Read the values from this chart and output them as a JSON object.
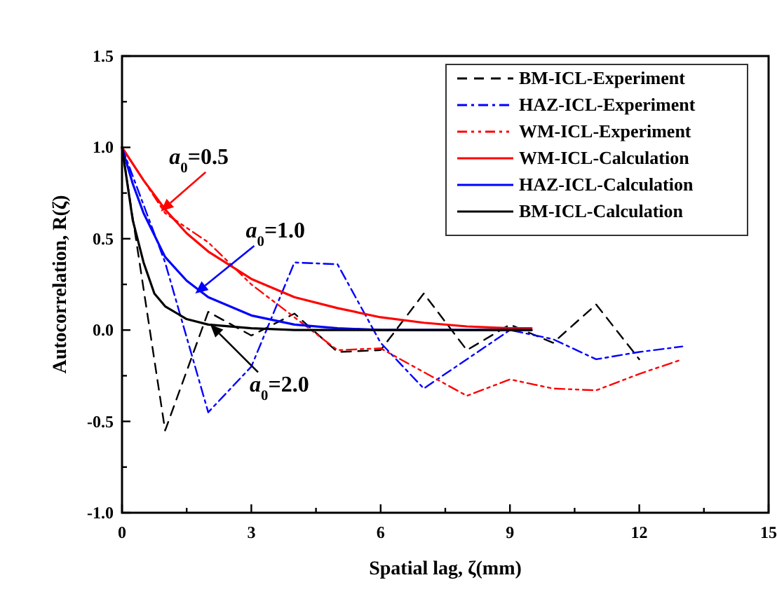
{
  "chart_data": {
    "type": "line",
    "xlabel": "Spatial lag, ζ(mm)",
    "ylabel": "Autocorrelation, R(ζ)",
    "xlim": [
      0,
      15
    ],
    "xticks": [
      0,
      {
        "value": 1.5,
        "label": null
      },
      3,
      {
        "value": 4.5,
        "label": null
      },
      6,
      {
        "value": 7.5,
        "label": null
      },
      9,
      {
        "value": 10.5,
        "label": null
      },
      12,
      {
        "value": 13.5,
        "label": null
      },
      15
    ],
    "ylim": [
      -1.0,
      1.5
    ],
    "yticks": [
      {
        "value": -1.0,
        "label": "-1.0"
      },
      {
        "value": -0.75,
        "label": null
      },
      {
        "value": -0.5,
        "label": "-0.5"
      },
      {
        "value": -0.25,
        "label": null
      },
      {
        "value": 0,
        "label": "0.0"
      },
      {
        "value": 0.25,
        "label": null
      },
      {
        "value": 0.5,
        "label": "0.5"
      },
      {
        "value": 0.75,
        "label": null
      },
      {
        "value": 1.0,
        "label": "1.0"
      },
      {
        "value": 1.25,
        "label": null
      },
      {
        "value": 1.5,
        "label": "1.5"
      }
    ],
    "grid": false,
    "legend": "top right",
    "marker": "none",
    "series": [
      {
        "name": "BM-ICL-Experiment",
        "color": "#000000",
        "line_style": "dashed",
        "x": [
          0,
          1,
          2,
          3,
          4,
          5,
          6,
          7,
          8,
          9,
          10,
          11,
          12
        ],
        "values": [
          1.0,
          -0.55,
          0.1,
          -0.03,
          0.09,
          -0.12,
          -0.11,
          0.2,
          -0.11,
          0.03,
          -0.07,
          0.14,
          -0.16
        ]
      },
      {
        "name": "HAZ-ICL-Experiment",
        "color": "#0000ff",
        "line_style": "dashdot",
        "x": [
          0,
          1,
          2,
          3,
          4,
          5,
          6,
          7,
          8,
          9,
          10,
          11,
          12,
          13
        ],
        "values": [
          1.0,
          0.37,
          -0.45,
          -0.2,
          0.37,
          0.36,
          -0.07,
          -0.32,
          -0.16,
          0.0,
          -0.05,
          -0.16,
          -0.12,
          -0.09
        ]
      },
      {
        "name": "WM-ICL-Experiment",
        "color": "#ff0000",
        "line_style": "dashdotdot",
        "x": [
          0,
          1,
          2,
          3,
          4,
          5,
          6,
          7,
          8,
          9,
          10,
          11,
          12,
          13
        ],
        "values": [
          1.0,
          0.64,
          0.48,
          0.25,
          0.07,
          -0.11,
          -0.1,
          -0.23,
          -0.36,
          -0.27,
          -0.32,
          -0.33,
          -0.24,
          -0.16
        ]
      },
      {
        "name": "WM-ICL-Calculation",
        "color": "#ff0000",
        "line_style": "solid",
        "x": [
          0,
          0.5,
          1,
          1.5,
          2,
          3,
          4,
          5,
          6,
          7,
          8,
          9,
          9.5
        ],
        "values": [
          1.0,
          0.82,
          0.66,
          0.53,
          0.43,
          0.28,
          0.18,
          0.12,
          0.07,
          0.04,
          0.02,
          0.01,
          0.01
        ]
      },
      {
        "name": "HAZ-ICL-Calculation",
        "color": "#0000ff",
        "line_style": "solid",
        "x": [
          0,
          0.25,
          0.5,
          1,
          1.5,
          2,
          3,
          4,
          5,
          6,
          9.5
        ],
        "values": [
          1.0,
          0.8,
          0.64,
          0.4,
          0.27,
          0.18,
          0.08,
          0.03,
          0.01,
          0.0,
          0.0
        ]
      },
      {
        "name": "BM-ICL-Calculation",
        "color": "#000000",
        "line_style": "solid",
        "x": [
          0,
          0.25,
          0.5,
          0.75,
          1,
          1.5,
          2,
          3,
          4,
          9.5
        ],
        "values": [
          1.0,
          0.6,
          0.37,
          0.2,
          0.13,
          0.06,
          0.03,
          0.01,
          0.0,
          0.0
        ]
      }
    ],
    "annotations": [
      {
        "text": "a$_{0}$=0.5",
        "x": 0.9,
        "y": 0.65
      },
      {
        "text": "a$_{0}$=1.0",
        "x": 1.7,
        "y": 0.2
      },
      {
        "text": "a$_{0}$=2.0",
        "x": 2.05,
        "y": 0.03
      }
    ]
  }
}
